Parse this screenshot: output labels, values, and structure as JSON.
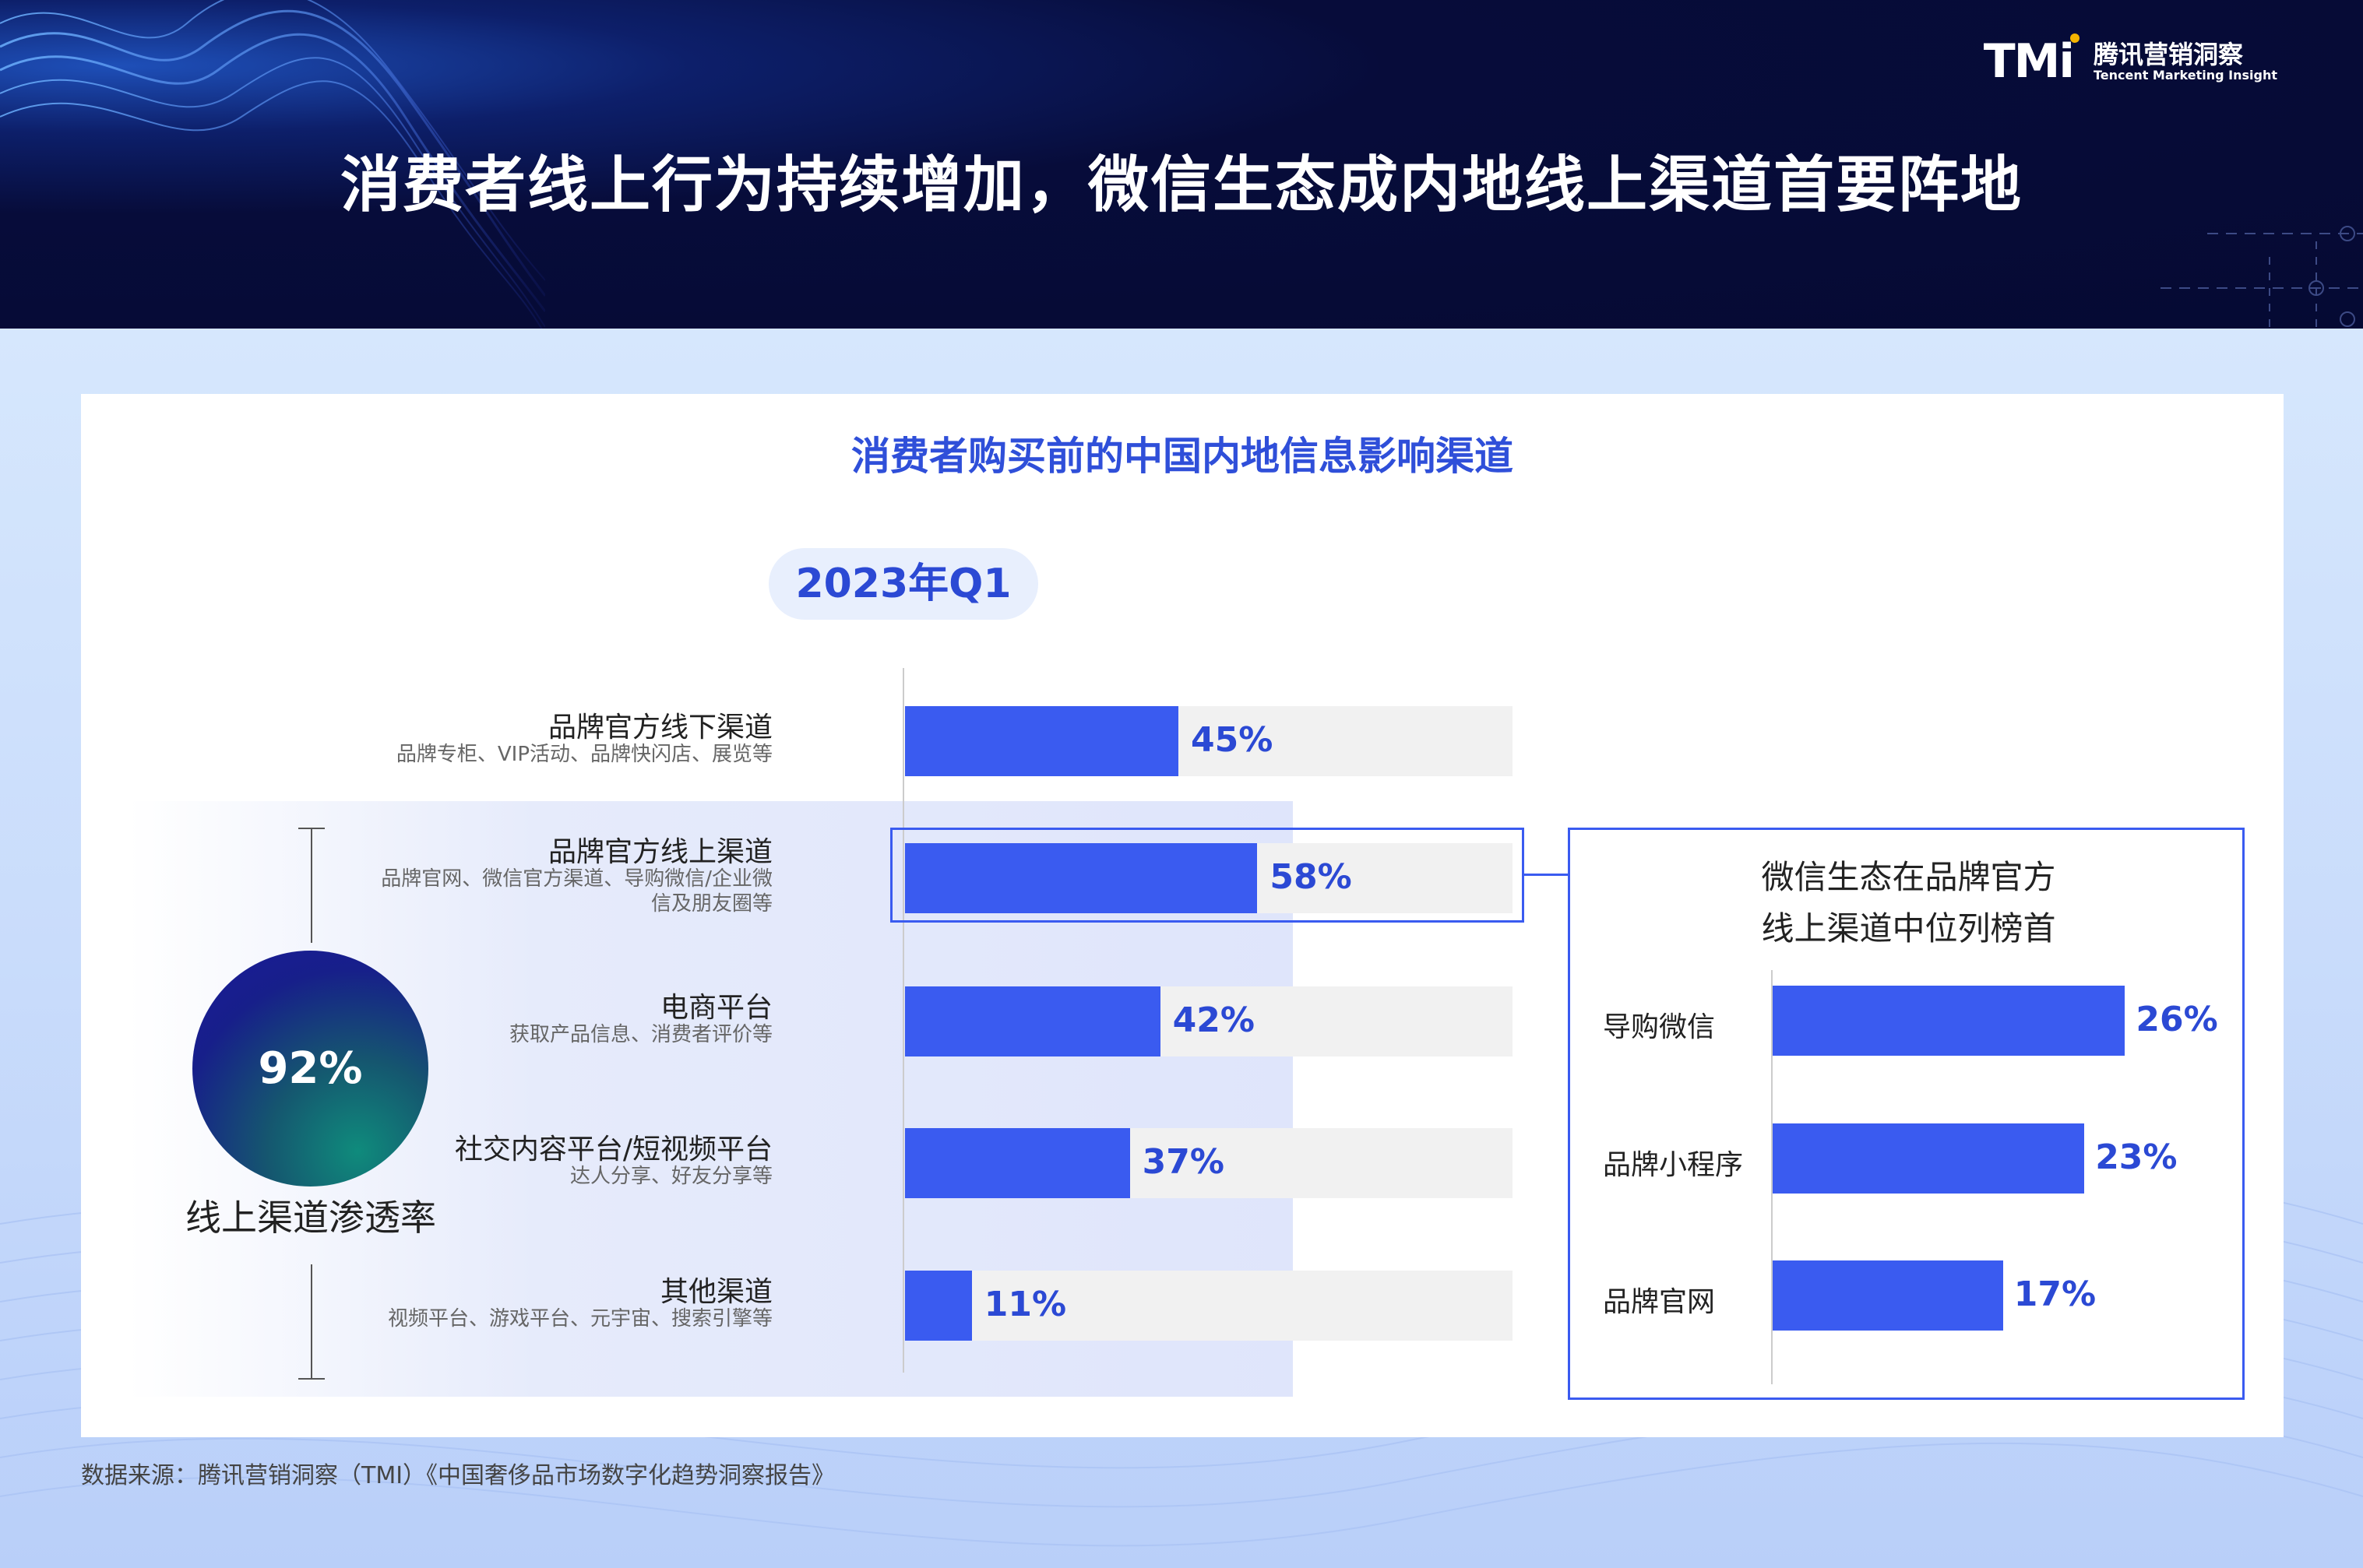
{
  "header": {
    "logo_mark": "TMi",
    "logo_cn": "腾讯营销洞察",
    "logo_en": "Tencent Marketing Insight",
    "title": "消费者线上行为持续增加，微信生态成内地线上渠道首要阵地"
  },
  "card": {
    "title": "消费者购买前的中国内地信息影响渠道",
    "period": "2023年Q1"
  },
  "penetration": {
    "value": "92%",
    "label": "线上渠道渗透率"
  },
  "highlight": {
    "title_line1": "微信生态在品牌官方",
    "title_line2": "线上渠道中位列榜首"
  },
  "chart_data": [
    {
      "type": "bar",
      "orientation": "horizontal",
      "title": "消费者购买前的中国内地信息影响渠道",
      "subtitle": "2023年Q1",
      "categories": [
        "品牌官方线下渠道",
        "品牌官方线上渠道",
        "电商平台",
        "社交内容平台/短视频平台",
        "其他渠道"
      ],
      "descriptions": [
        "品牌专柜、VIP活动、品牌快闪店、展览等",
        "品牌官网、微信官方渠道、导购微信/企业微信及朋友圈等",
        "获取产品信息、消费者评价等",
        "达人分享、好友分享等",
        "视频平台、游戏平台、元宇宙、搜索引擎等"
      ],
      "desc_lines": [
        [
          "品牌专柜、VIP活动、品牌快闪店、展览等"
        ],
        [
          "品牌官网、微信官方渠道、导购微信/企业微",
          "信及朋友圈等"
        ],
        [
          "获取产品信息、消费者评价等"
        ],
        [
          "达人分享、好友分享等"
        ],
        [
          "视频平台、游戏平台、元宇宙、搜索引擎等"
        ]
      ],
      "values": [
        45,
        58,
        42,
        37,
        11
      ],
      "labels": [
        "45%",
        "58%",
        "42%",
        "37%",
        "11%"
      ],
      "xlim": [
        0,
        100
      ],
      "grid": false
    },
    {
      "type": "bar",
      "orientation": "horizontal",
      "title": "微信生态在品牌官方线上渠道中位列榜首",
      "categories": [
        "导购微信",
        "品牌小程序",
        "品牌官网"
      ],
      "values": [
        26,
        23,
        17
      ],
      "labels": [
        "26%",
        "23%",
        "17%"
      ],
      "xlim": [
        0,
        39
      ],
      "grid": false
    }
  ],
  "colors": {
    "bar": "#3a5bf0",
    "accent_text": "#2b49d4",
    "track": "#f1f1f1",
    "header_bg": "#050a33"
  },
  "source": "数据来源：腾讯营销洞察（TMI）《中国奢侈品市场数字化趋势洞察报告》"
}
